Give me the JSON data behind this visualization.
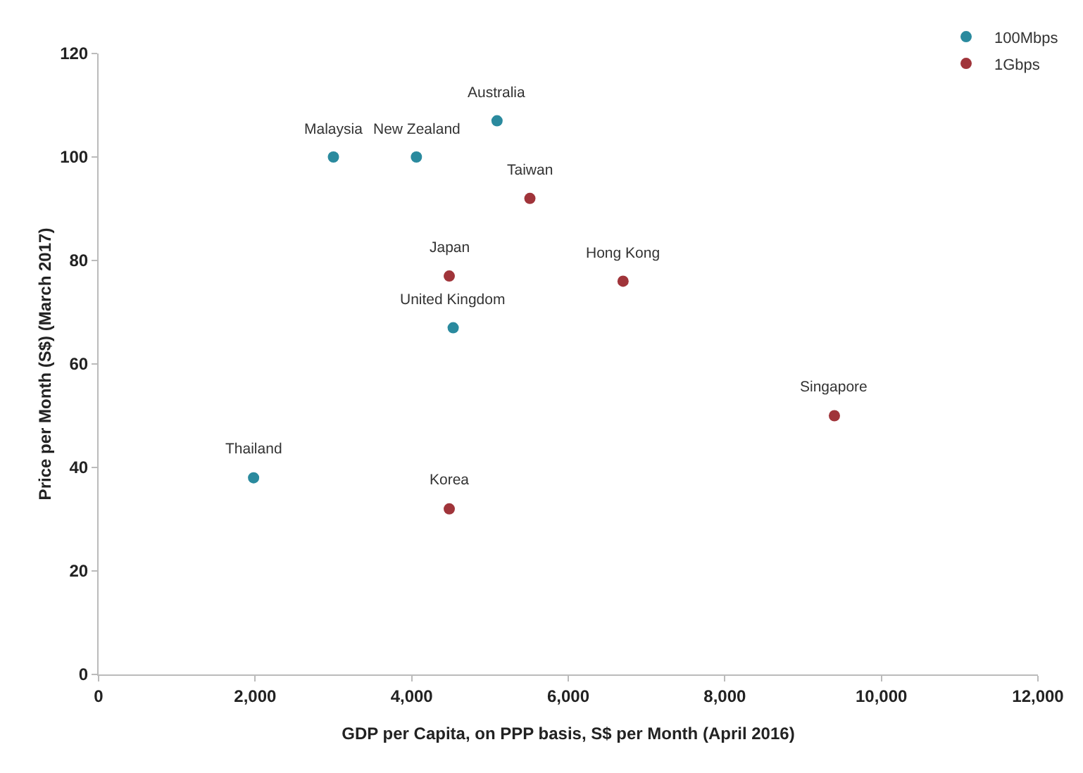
{
  "chart_data": {
    "type": "scatter",
    "xlabel": "GDP per Capita, on PPP basis, S$ per Month (April 2016)",
    "ylabel": "Price per Month (S$) (March 2017)",
    "xlim": [
      0,
      12000
    ],
    "xticks": [
      0,
      {
        "value": 2000,
        "label": "2,000"
      },
      {
        "value": 4000,
        "label": "4,000"
      },
      {
        "value": 6000,
        "label": "6,000"
      },
      {
        "value": 8000,
        "label": "8,000"
      },
      {
        "value": 10000,
        "label": "10,000"
      },
      {
        "value": 12000,
        "label": "12,000"
      }
    ],
    "ylim": [
      0,
      120
    ],
    "yticks": [
      0,
      20,
      40,
      60,
      80,
      100,
      120
    ],
    "grid": false,
    "legend": "top right",
    "marker": "circle",
    "series": [
      {
        "name": "100Mbps",
        "color": "#2a8a9e",
        "x": [
          1980,
          3000,
          4060,
          5090,
          4530
        ],
        "values": [
          38,
          100,
          100,
          107,
          67
        ]
      },
      {
        "name": "1Gbps",
        "color": "#a0343a",
        "x": [
          4480,
          4480,
          5510,
          6700,
          9400
        ],
        "values": [
          32,
          77,
          92,
          76,
          50
        ]
      }
    ],
    "annotations": [
      {
        "text": "Thailand",
        "x": 1980,
        "y": 38
      },
      {
        "text": "Malaysia",
        "x": 3000,
        "y": 100
      },
      {
        "text": "New Zealand",
        "x": 4060,
        "y": 100
      },
      {
        "text": "Australia",
        "x": 5090,
        "y": 107
      },
      {
        "text": "United Kingdom",
        "x": 4530,
        "y": 67
      },
      {
        "text": "Korea",
        "x": 4480,
        "y": 32
      },
      {
        "text": "Japan",
        "x": 4480,
        "y": 77
      },
      {
        "text": "Taiwan",
        "x": 5510,
        "y": 92
      },
      {
        "text": "Hong Kong",
        "x": 6700,
        "y": 76
      },
      {
        "text": "Singapore",
        "x": 9400,
        "y": 50
      }
    ]
  }
}
